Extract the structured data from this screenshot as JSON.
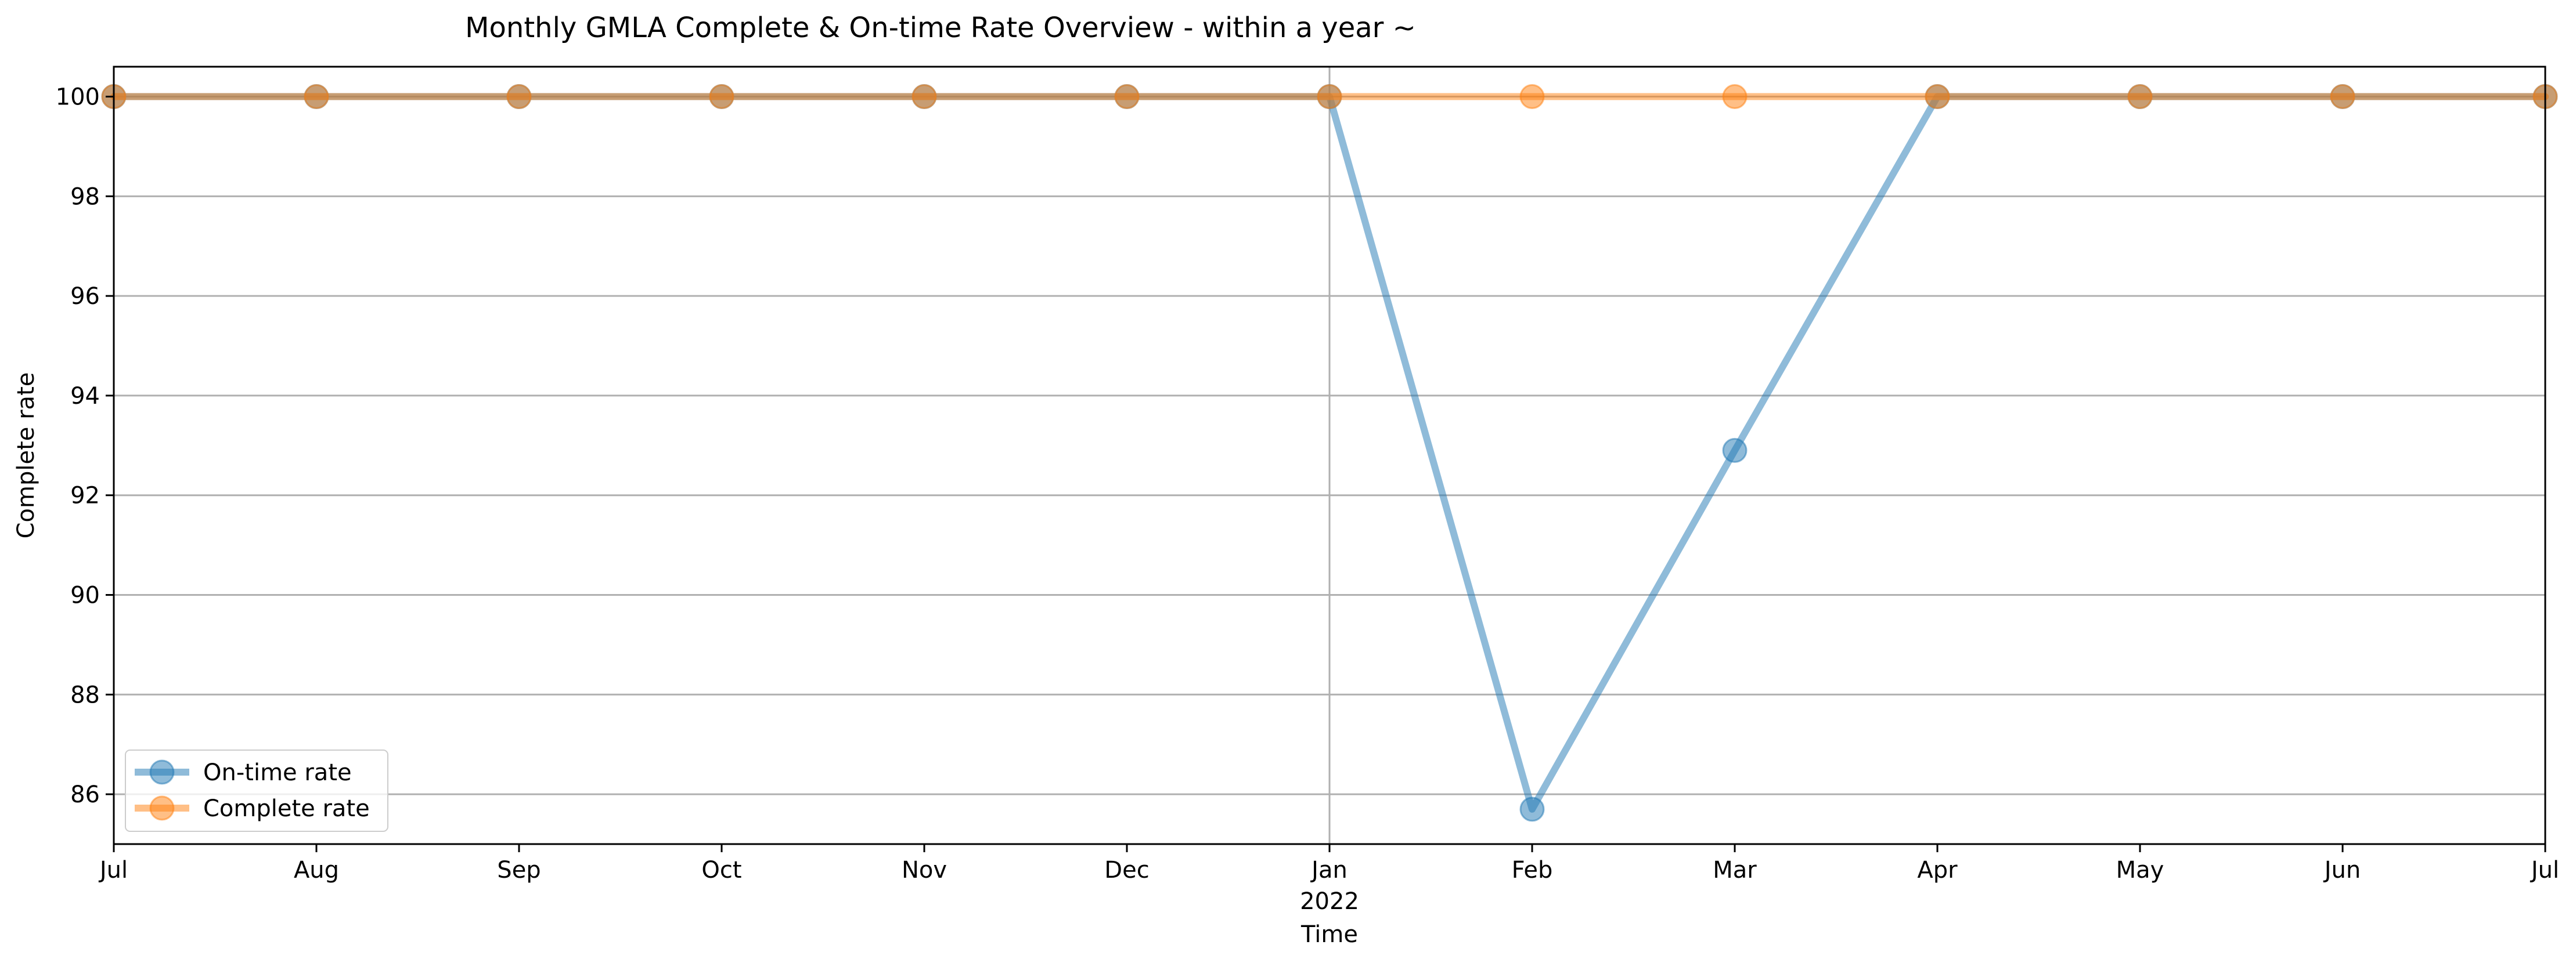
{
  "chart_data": {
    "type": "line",
    "title": "Monthly GMLA Complete & On-time Rate Overview - within a year ~",
    "xlabel": "Time",
    "ylabel": "Complete rate",
    "x_tick_labels": [
      "Jul",
      "Aug",
      "Sep",
      "Oct",
      "Nov",
      "Dec",
      "Jan",
      "Feb",
      "Mar",
      "Apr",
      "May",
      "Jun",
      "Jul"
    ],
    "x_year_label": "2022",
    "x": [
      "2021-07",
      "2021-08",
      "2021-09",
      "2021-10",
      "2021-11",
      "2021-12",
      "2022-01",
      "2022-02",
      "2022-03",
      "2022-04",
      "2022-05",
      "2022-06",
      "2022-07"
    ],
    "ylim": [
      85,
      100.6
    ],
    "y_ticks": [
      86,
      88,
      90,
      92,
      94,
      96,
      98,
      100
    ],
    "grid": "horizontal lines at y ticks, vertical line at Jan 2022",
    "legend_position": "lower left",
    "series": [
      {
        "name": "On-time rate",
        "color": "#1f77b4",
        "values": [
          100,
          100,
          100,
          100,
          100,
          100,
          100,
          85.7,
          92.9,
          100,
          100,
          100,
          100
        ]
      },
      {
        "name": "Complete rate",
        "color": "#ff7f0e",
        "values": [
          100,
          100,
          100,
          100,
          100,
          100,
          100,
          100,
          100,
          100,
          100,
          100,
          100
        ]
      }
    ]
  }
}
